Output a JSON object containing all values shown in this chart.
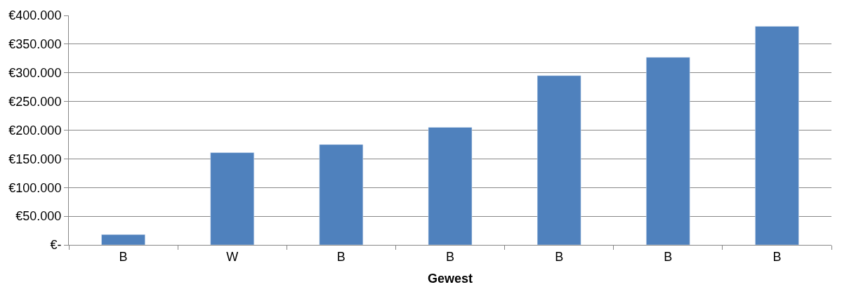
{
  "chart_data": {
    "type": "bar",
    "xlabel": "Gewest",
    "categories": [
      "B",
      "W",
      "B",
      "B",
      "B",
      "B",
      "B"
    ],
    "series": [
      {
        "color": "#4f81bd",
        "values": [
          18000,
          161000,
          175000,
          205000,
          295000,
          327000,
          381000
        ]
      }
    ],
    "ylim": [
      0,
      400000
    ],
    "yticks": [
      {
        "value": 0,
        "label": "€-"
      },
      {
        "value": 50000,
        "label": "€50.000"
      },
      {
        "value": 100000,
        "label": "€100.000"
      },
      {
        "value": 150000,
        "label": "€150.000"
      },
      {
        "value": 200000,
        "label": "€200.000"
      },
      {
        "value": 250000,
        "label": "€250.000"
      },
      {
        "value": 300000,
        "label": "€300.000"
      },
      {
        "value": 350000,
        "label": "€350.000"
      },
      {
        "value": 400000,
        "label": "€400.000"
      }
    ],
    "grid": "y"
  }
}
